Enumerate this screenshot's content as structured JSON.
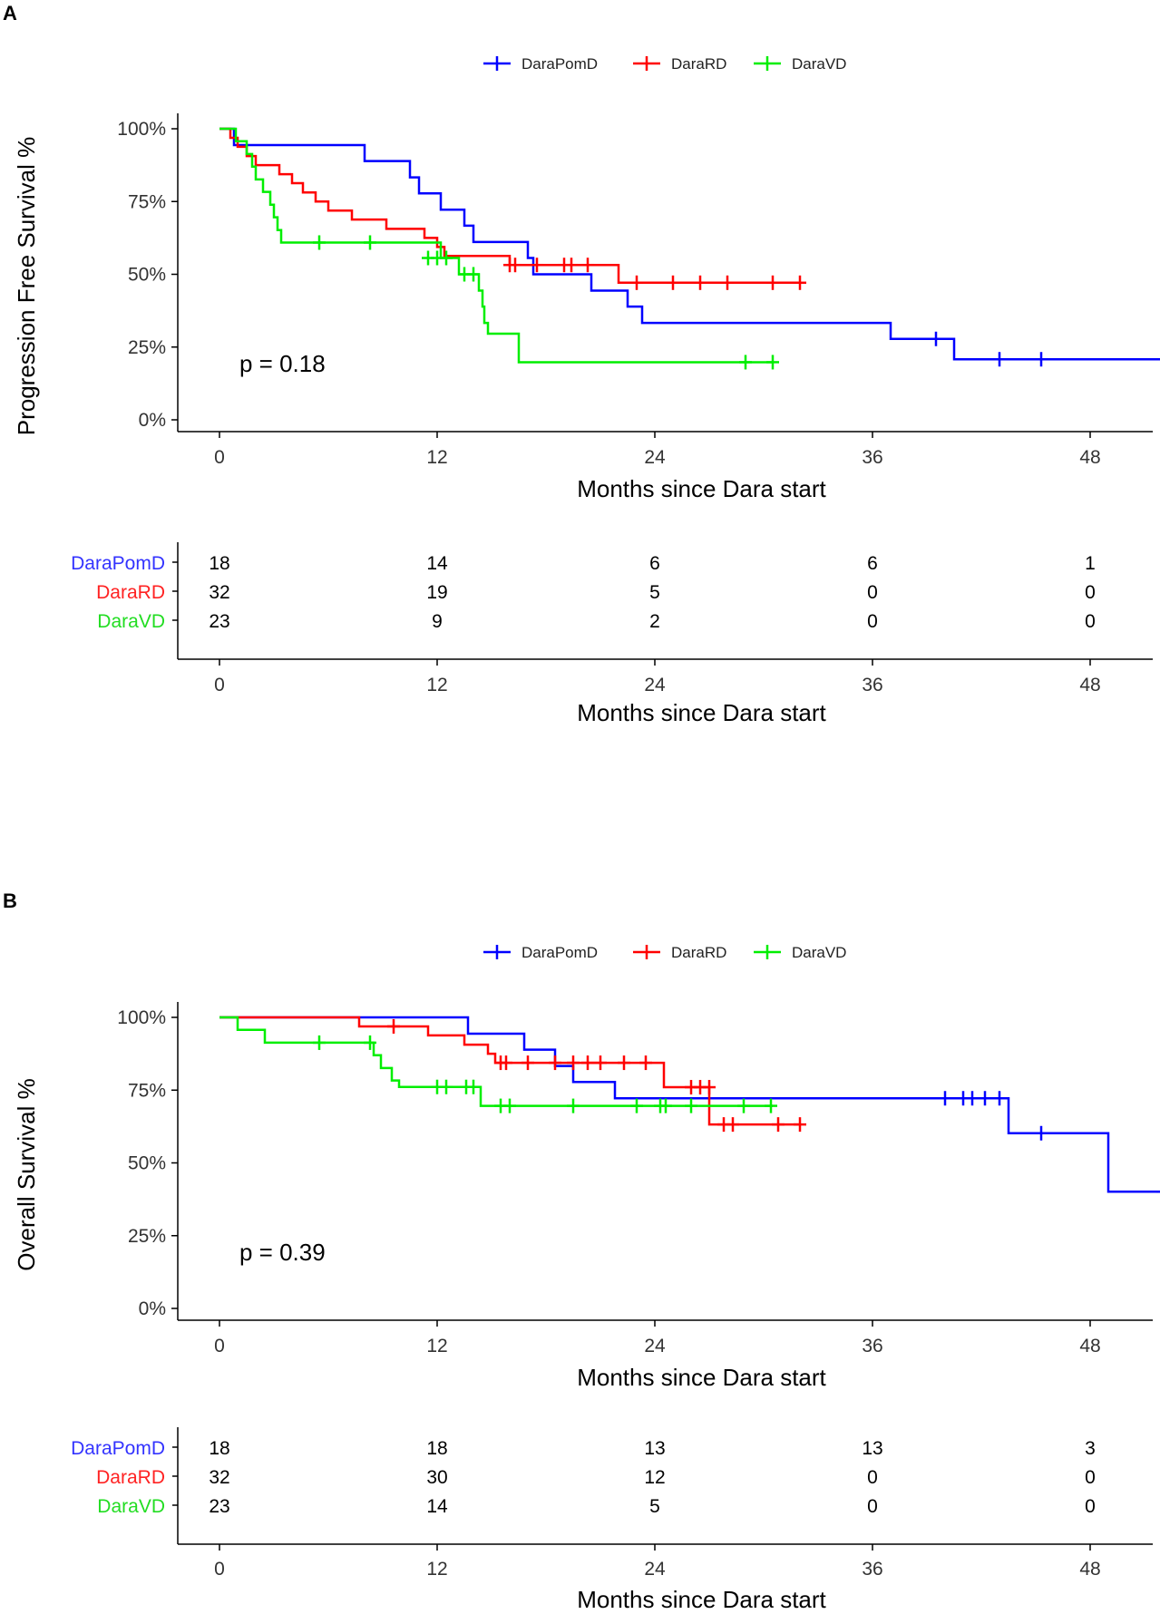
{
  "chart_data": [
    {
      "panel": "A",
      "type": "line",
      "subtype": "kaplan-meier",
      "ylabel": "Progression Free Survival %",
      "xlabel": "Months since Dara start",
      "xlim": [
        0,
        52
      ],
      "ylim": [
        0,
        1
      ],
      "xticks": [
        0,
        12,
        24,
        36,
        48
      ],
      "yticks": [
        0,
        0.25,
        0.5,
        0.75,
        1
      ],
      "ytick_labels": [
        "0%",
        "25%",
        "50%",
        "75%",
        "100%"
      ],
      "pvalue_text": "p = 0.18",
      "legend": [
        "DaraPomD",
        "DaraRD",
        "DaraVD"
      ],
      "series": [
        {
          "name": "DaraPomD",
          "color": "#0000ff",
          "steps": [
            [
              0,
              1.0
            ],
            [
              0.8,
              0.944
            ],
            [
              8,
              0.889
            ],
            [
              10.5,
              0.833
            ],
            [
              11,
              0.778
            ],
            [
              12.2,
              0.722
            ],
            [
              13.5,
              0.667
            ],
            [
              14,
              0.611
            ],
            [
              17,
              0.556
            ],
            [
              17.3,
              0.5
            ],
            [
              20.5,
              0.444
            ],
            [
              22.5,
              0.389
            ],
            [
              23.3,
              0.333
            ],
            [
              37,
              0.278
            ],
            [
              40.5,
              0.208
            ],
            [
              52,
              0.208
            ]
          ],
          "censors": [
            [
              39.5,
              0.278
            ],
            [
              43,
              0.208
            ],
            [
              45.3,
              0.208
            ],
            [
              52,
              0.208
            ]
          ]
        },
        {
          "name": "DaraRD",
          "color": "#ff0000",
          "steps": [
            [
              0,
              1.0
            ],
            [
              0.6,
              0.969
            ],
            [
              1,
              0.938
            ],
            [
              1.5,
              0.906
            ],
            [
              2,
              0.875
            ],
            [
              3.3,
              0.844
            ],
            [
              4,
              0.813
            ],
            [
              4.6,
              0.781
            ],
            [
              5.3,
              0.75
            ],
            [
              6,
              0.719
            ],
            [
              7.3,
              0.688
            ],
            [
              9.2,
              0.656
            ],
            [
              11.3,
              0.625
            ],
            [
              12,
              0.594
            ],
            [
              12.4,
              0.563
            ],
            [
              16,
              0.532
            ],
            [
              22,
              0.471
            ],
            [
              32,
              0.471
            ]
          ],
          "censors": [
            [
              16,
              0.532
            ],
            [
              16.3,
              0.532
            ],
            [
              17.5,
              0.532
            ],
            [
              19,
              0.532
            ],
            [
              19.4,
              0.532
            ],
            [
              20.3,
              0.532
            ],
            [
              23,
              0.471
            ],
            [
              25,
              0.471
            ],
            [
              26.5,
              0.471
            ],
            [
              28,
              0.471
            ],
            [
              30.5,
              0.471
            ],
            [
              32,
              0.471
            ]
          ],
          "censor_labels_omitted": true
        },
        {
          "name": "DaraVD",
          "color": "#00ee00",
          "steps": [
            [
              0,
              1.0
            ],
            [
              0.9,
              0.957
            ],
            [
              1.5,
              0.913
            ],
            [
              1.8,
              0.87
            ],
            [
              2,
              0.826
            ],
            [
              2.4,
              0.783
            ],
            [
              2.8,
              0.739
            ],
            [
              3,
              0.696
            ],
            [
              3.2,
              0.652
            ],
            [
              3.4,
              0.609
            ],
            [
              12.2,
              0.556
            ],
            [
              13.2,
              0.5
            ],
            [
              14.3,
              0.444
            ],
            [
              14.5,
              0.389
            ],
            [
              14.6,
              0.333
            ],
            [
              14.8,
              0.296
            ],
            [
              16.5,
              0.198
            ],
            [
              30.5,
              0.198
            ]
          ],
          "censors": [
            [
              5.5,
              0.609
            ],
            [
              8.3,
              0.609
            ],
            [
              11.5,
              0.556
            ],
            [
              12,
              0.556
            ],
            [
              12.5,
              0.556
            ],
            [
              13.5,
              0.5
            ],
            [
              14,
              0.5
            ],
            [
              29,
              0.198
            ],
            [
              30.5,
              0.198
            ]
          ]
        }
      ],
      "risk_table": {
        "xlabel": "Months since Dara start",
        "times": [
          "0",
          "12",
          "24",
          "36",
          "48"
        ],
        "rows": [
          {
            "name": "DaraPomD",
            "color": "#3333ff",
            "counts": [
              "18",
              "14",
              "6",
              "6",
              "1"
            ]
          },
          {
            "name": "DaraRD",
            "color": "#ff2222",
            "counts": [
              "32",
              "19",
              "5",
              "0",
              "0"
            ]
          },
          {
            "name": "DaraVD",
            "color": "#22dd22",
            "counts": [
              "23",
              "9",
              "2",
              "0",
              "0"
            ]
          }
        ]
      }
    },
    {
      "panel": "B",
      "type": "line",
      "subtype": "kaplan-meier",
      "ylabel": "Overall Survival %",
      "xlabel": "Months since Dara start",
      "xlim": [
        0,
        52
      ],
      "ylim": [
        0,
        1
      ],
      "xticks": [
        0,
        12,
        24,
        36,
        48
      ],
      "yticks": [
        0,
        0.25,
        0.5,
        0.75,
        1
      ],
      "ytick_labels": [
        "0%",
        "25%",
        "50%",
        "75%",
        "100%"
      ],
      "pvalue_text": "p = 0.39",
      "legend": [
        "DaraPomD",
        "DaraRD",
        "DaraVD"
      ],
      "series": [
        {
          "name": "DaraPomD",
          "color": "#0000ff",
          "steps": [
            [
              0,
              1.0
            ],
            [
              13.7,
              0.944
            ],
            [
              16.8,
              0.889
            ],
            [
              18.5,
              0.833
            ],
            [
              19.5,
              0.778
            ],
            [
              21.8,
              0.722
            ],
            [
              43.5,
              0.602
            ],
            [
              49,
              0.401
            ],
            [
              52,
              0.401
            ]
          ],
          "censors": [
            [
              40,
              0.722
            ],
            [
              41,
              0.722
            ],
            [
              41.5,
              0.722
            ],
            [
              42.2,
              0.722
            ],
            [
              43,
              0.722
            ],
            [
              45.3,
              0.602
            ],
            [
              52,
              0.401
            ]
          ]
        },
        {
          "name": "DaraRD",
          "color": "#ff0000",
          "steps": [
            [
              0,
              1.0
            ],
            [
              7.7,
              0.969
            ],
            [
              11.5,
              0.938
            ],
            [
              13.5,
              0.906
            ],
            [
              14.8,
              0.875
            ],
            [
              15.2,
              0.844
            ],
            [
              24.5,
              0.76
            ],
            [
              27,
              0.632
            ],
            [
              32,
              0.632
            ]
          ],
          "censors": [
            [
              9.6,
              0.969
            ],
            [
              15.5,
              0.844
            ],
            [
              15.8,
              0.844
            ],
            [
              17,
              0.844
            ],
            [
              18.5,
              0.844
            ],
            [
              19.5,
              0.844
            ],
            [
              20.3,
              0.844
            ],
            [
              21,
              0.844
            ],
            [
              22.3,
              0.844
            ],
            [
              23.5,
              0.844
            ],
            [
              26,
              0.76
            ],
            [
              26.5,
              0.76
            ],
            [
              27,
              0.76
            ],
            [
              27.8,
              0.632
            ],
            [
              28.3,
              0.632
            ],
            [
              30.8,
              0.632
            ],
            [
              32,
              0.632
            ]
          ]
        },
        {
          "name": "DaraVD",
          "color": "#00ee00",
          "steps": [
            [
              0,
              1.0
            ],
            [
              1,
              0.957
            ],
            [
              2.5,
              0.913
            ],
            [
              8.5,
              0.87
            ],
            [
              8.9,
              0.826
            ],
            [
              9.5,
              0.783
            ],
            [
              9.9,
              0.761
            ],
            [
              14.4,
              0.696
            ],
            [
              30.5,
              0.696
            ]
          ],
          "censors": [
            [
              5.5,
              0.913
            ],
            [
              8.3,
              0.913
            ],
            [
              12,
              0.761
            ],
            [
              12.5,
              0.761
            ],
            [
              13.6,
              0.761
            ],
            [
              14,
              0.761
            ],
            [
              15.5,
              0.696
            ],
            [
              16,
              0.696
            ],
            [
              19.5,
              0.696
            ],
            [
              23,
              0.696
            ],
            [
              24.3,
              0.696
            ],
            [
              24.6,
              0.696
            ],
            [
              26,
              0.696
            ],
            [
              28.9,
              0.696
            ],
            [
              30.4,
              0.696
            ]
          ]
        }
      ],
      "risk_table": {
        "xlabel": "Months since Dara start",
        "times": [
          "0",
          "12",
          "24",
          "36",
          "48"
        ],
        "rows": [
          {
            "name": "DaraPomD",
            "color": "#3333ff",
            "counts": [
              "18",
              "18",
              "13",
              "13",
              "3"
            ]
          },
          {
            "name": "DaraRD",
            "color": "#ff2222",
            "counts": [
              "32",
              "30",
              "12",
              "0",
              "0"
            ]
          },
          {
            "name": "DaraVD",
            "color": "#22dd22",
            "counts": [
              "23",
              "14",
              "5",
              "0",
              "0"
            ]
          }
        ]
      }
    }
  ]
}
